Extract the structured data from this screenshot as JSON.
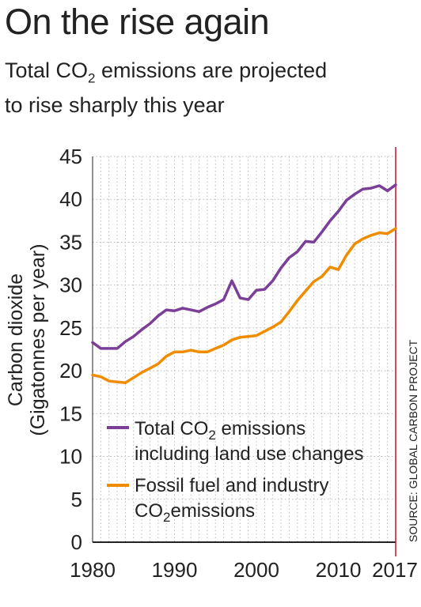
{
  "header": {
    "title": "On the rise again",
    "subtitle_line1_pre": "Total CO",
    "subtitle_line1_sub": "2",
    "subtitle_line1_post": " emissions are projected",
    "subtitle_line2": "to rise sharply this year"
  },
  "colors": {
    "total": "#7b3f98",
    "fossil": "#f08c00",
    "highlight": "#c8102e",
    "grid": "#bbbbbb",
    "axis": "#222222"
  },
  "chart_data": {
    "type": "line",
    "ylabel_line1": "Carbon dioxide",
    "ylabel_line2": "(Gigatonnes per year)",
    "ylim": [
      0,
      45
    ],
    "yticks": [
      0,
      5,
      10,
      15,
      20,
      25,
      30,
      35,
      40,
      45
    ],
    "xlim": [
      1980,
      2017
    ],
    "xticks": [
      1980,
      1990,
      2000,
      2010
    ],
    "highlight_year": 2017,
    "highlight_label": "2017",
    "grid": true,
    "legend_position": "bottom-left",
    "source": "SOURCE: GLOBAL CARBON PROJECT",
    "x": [
      1980,
      1981,
      1982,
      1983,
      1984,
      1985,
      1986,
      1987,
      1988,
      1989,
      1990,
      1991,
      1992,
      1993,
      1994,
      1995,
      1996,
      1997,
      1998,
      1999,
      2000,
      2001,
      2002,
      2003,
      2004,
      2005,
      2006,
      2007,
      2008,
      2009,
      2010,
      2011,
      2012,
      2013,
      2014,
      2015,
      2016,
      2017
    ],
    "series": [
      {
        "key": "total",
        "legend_pre": "Total CO",
        "legend_sub": "2",
        "legend_post": " emissions",
        "legend_line2": "including land use changes",
        "values": [
          23.3,
          22.6,
          22.6,
          22.6,
          23.4,
          24.0,
          24.8,
          25.5,
          26.4,
          27.1,
          27.0,
          27.3,
          27.1,
          26.9,
          27.4,
          27.8,
          28.3,
          30.5,
          28.5,
          28.3,
          29.4,
          29.5,
          30.5,
          32.0,
          33.2,
          33.9,
          35.1,
          35.0,
          36.2,
          37.5,
          38.6,
          39.9,
          40.6,
          41.2,
          41.3,
          41.6,
          41.0,
          41.7
        ]
      },
      {
        "key": "fossil",
        "legend_line1": "Fossil fuel and industry",
        "legend_pre": "CO",
        "legend_sub": "2",
        "legend_post": "emissions",
        "values": [
          19.5,
          19.3,
          18.8,
          18.7,
          18.6,
          19.2,
          19.8,
          20.3,
          20.8,
          21.7,
          22.2,
          22.2,
          22.4,
          22.2,
          22.2,
          22.6,
          23.0,
          23.6,
          23.9,
          24.0,
          24.1,
          24.6,
          25.1,
          25.7,
          26.9,
          28.2,
          29.3,
          30.4,
          31.0,
          32.1,
          31.8,
          33.5,
          34.8,
          35.4,
          35.8,
          36.1,
          36.0,
          36.6
        ]
      }
    ]
  }
}
